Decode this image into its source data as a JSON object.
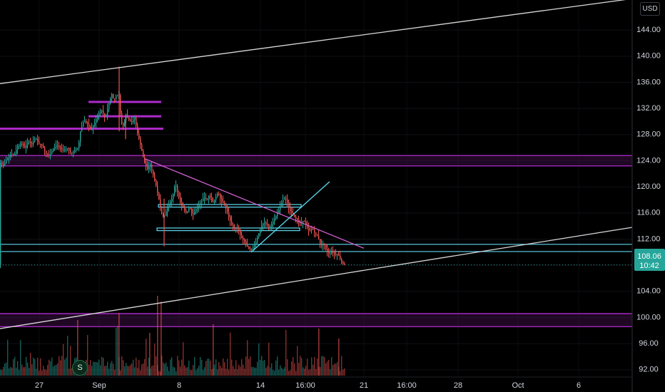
{
  "header": {
    "currency": "USD"
  },
  "logo": {
    "letter": "S"
  },
  "price_badge": {
    "price": "108.06",
    "countdown": "10:42",
    "color": "#26a69a"
  },
  "colors": {
    "background": "#000000",
    "text": "#d1d4dc",
    "up": "#26a69a",
    "down": "#ef5350",
    "zone_magenta": "#c02fe0",
    "zone_fill": "#3a0f44",
    "cyan": "#5fd8f0",
    "trend_white": "#d9d9d9",
    "trend_pink": "#d05fd0"
  },
  "chart_data": {
    "type": "candlestick",
    "y_axis": {
      "ticks": [
        "92.00",
        "96.00",
        "100.00",
        "104.00",
        "108.00",
        "112.00",
        "116.00",
        "120.00",
        "124.00",
        "128.00",
        "132.00",
        "136.00",
        "140.00",
        "144.00"
      ],
      "range": [
        88.6,
        148.6
      ],
      "position": "right"
    },
    "x_axis": {
      "ticks": [
        "27",
        "Sep",
        "8",
        "14",
        "16:00",
        "21",
        "16:00",
        "28",
        "Oct",
        "6"
      ]
    },
    "last_price": 108.06,
    "price_path": [
      [
        0,
        123.8
      ],
      [
        5,
        123.2
      ],
      [
        10,
        124.3
      ],
      [
        15,
        124.9
      ],
      [
        20,
        124.8
      ],
      [
        25,
        126.2
      ],
      [
        30,
        126.7
      ],
      [
        35,
        126.0
      ],
      [
        40,
        127.0
      ],
      [
        45,
        126.5
      ],
      [
        50,
        127.5
      ],
      [
        55,
        126.6
      ],
      [
        60,
        126.2
      ],
      [
        65,
        125.1
      ],
      [
        70,
        124.8
      ],
      [
        75,
        125.9
      ],
      [
        80,
        126.4
      ],
      [
        85,
        125.8
      ],
      [
        90,
        125.6
      ],
      [
        95,
        125.9
      ],
      [
        100,
        125.1
      ],
      [
        105,
        125.6
      ],
      [
        110,
        126.0
      ],
      [
        113,
        128.5
      ],
      [
        118,
        130.2
      ],
      [
        123,
        129.6
      ],
      [
        128,
        128.7
      ],
      [
        133,
        129.8
      ],
      [
        138,
        131.2
      ],
      [
        143,
        131.7
      ],
      [
        148,
        130.5
      ],
      [
        153,
        132.8
      ],
      [
        157,
        134.2
      ],
      [
        160,
        133.2
      ],
      [
        163,
        133.9
      ],
      [
        167,
        134.0
      ],
      [
        170,
        130.0
      ],
      [
        173,
        129.3
      ],
      [
        177,
        131.0
      ],
      [
        181,
        130.2
      ],
      [
        185,
        129.9
      ],
      [
        189,
        130.6
      ],
      [
        193,
        128.2
      ],
      [
        197,
        126.5
      ],
      [
        200,
        125.0
      ],
      [
        203,
        123.6
      ],
      [
        207,
        122.7
      ],
      [
        211,
        123.4
      ],
      [
        215,
        121.8
      ],
      [
        219,
        120.2
      ],
      [
        223,
        118.1
      ],
      [
        226,
        116.3
      ],
      [
        230,
        115.2
      ],
      [
        234,
        116.6
      ],
      [
        238,
        117.6
      ],
      [
        242,
        118.3
      ],
      [
        246,
        120.6
      ],
      [
        250,
        118.8
      ],
      [
        254,
        117.3
      ],
      [
        258,
        116.6
      ],
      [
        262,
        115.9
      ],
      [
        266,
        117.0
      ],
      [
        270,
        115.6
      ],
      [
        274,
        116.4
      ],
      [
        278,
        117.1
      ],
      [
        282,
        117.6
      ],
      [
        286,
        118.4
      ],
      [
        290,
        118.0
      ],
      [
        294,
        118.8
      ],
      [
        298,
        117.4
      ],
      [
        302,
        118.2
      ],
      [
        306,
        119.2
      ],
      [
        310,
        117.9
      ],
      [
        314,
        117.4
      ],
      [
        318,
        116.5
      ],
      [
        322,
        115.1
      ],
      [
        326,
        113.9
      ],
      [
        330,
        113.5
      ],
      [
        334,
        113.8
      ],
      [
        338,
        112.3
      ],
      [
        342,
        111.8
      ],
      [
        346,
        111.0
      ],
      [
        350,
        110.3
      ],
      [
        354,
        110.6
      ],
      [
        358,
        111.2
      ],
      [
        362,
        112.6
      ],
      [
        366,
        113.8
      ],
      [
        370,
        114.6
      ],
      [
        374,
        114.2
      ],
      [
        378,
        113.7
      ],
      [
        382,
        114.5
      ],
      [
        386,
        115.3
      ],
      [
        390,
        116.2
      ],
      [
        394,
        117.3
      ],
      [
        398,
        118.3
      ],
      [
        402,
        118.0
      ],
      [
        406,
        116.4
      ],
      [
        410,
        115.9
      ],
      [
        414,
        115.3
      ],
      [
        418,
        114.8
      ],
      [
        422,
        114.4
      ],
      [
        426,
        114.9
      ],
      [
        430,
        113.9
      ],
      [
        434,
        113.2
      ],
      [
        438,
        113.7
      ],
      [
        442,
        112.8
      ],
      [
        446,
        112.4
      ],
      [
        450,
        110.9
      ],
      [
        454,
        111.5
      ],
      [
        458,
        110.1
      ],
      [
        462,
        109.7
      ],
      [
        466,
        110.2
      ],
      [
        470,
        109.5
      ],
      [
        474,
        109.7
      ],
      [
        478,
        108.8
      ],
      [
        482,
        108.06
      ]
    ],
    "extreme_wicks": [
      {
        "x": 167,
        "high": 138.4,
        "low": 128.5
      },
      {
        "x": 230,
        "high": 118.2,
        "low": 110.9
      },
      {
        "x": 176,
        "high": 131.0,
        "low": 127.3
      }
    ],
    "zones": [
      {
        "kind": "magenta_band",
        "low": 123.2,
        "high": 124.8,
        "from": 0,
        "to": 886
      },
      {
        "kind": "magenta_band",
        "low": 98.6,
        "high": 100.6,
        "from": 0,
        "to": 886
      },
      {
        "kind": "magenta_line",
        "price": 133.0,
        "from": 124,
        "to": 226
      },
      {
        "kind": "magenta_line",
        "price": 130.8,
        "from": 124,
        "to": 226
      },
      {
        "kind": "magenta_line",
        "price": 128.9,
        "from": 0,
        "to": 229
      },
      {
        "kind": "cyan_band",
        "low": 110.1,
        "high": 111.2,
        "from": 0,
        "to": 886
      },
      {
        "kind": "cyan_box",
        "low": 116.9,
        "high": 117.3,
        "from": 222,
        "to": 422
      },
      {
        "kind": "cyan_box",
        "low": 113.3,
        "high": 113.7,
        "from": 220,
        "to": 420
      }
    ],
    "trendlines": [
      {
        "color": "white",
        "from": [
          0,
          135.8
        ],
        "to": [
          886,
          148.8
        ]
      },
      {
        "color": "white",
        "from": [
          0,
          98.3
        ],
        "to": [
          886,
          113.8
        ]
      },
      {
        "color": "pink",
        "from": [
          203,
          124.3
        ],
        "to": [
          510,
          110.6
        ]
      },
      {
        "color": "cyan",
        "from": [
          352,
          110.0
        ],
        "to": [
          462,
          120.8
        ]
      }
    ]
  }
}
